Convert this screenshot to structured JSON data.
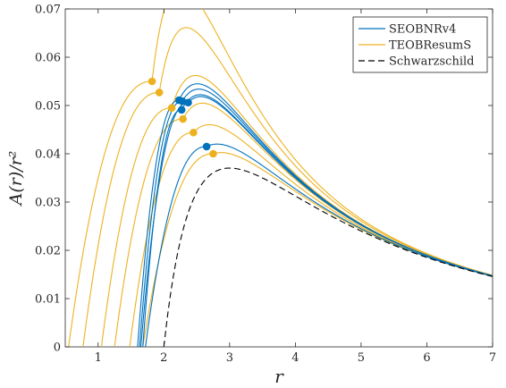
{
  "chart_data": {
    "type": "line",
    "xlabel": "r",
    "ylabel": "A(r)/r²",
    "xlim": [
      0.5,
      7
    ],
    "ylim": [
      0,
      0.07
    ],
    "xticks": [
      1,
      2,
      3,
      4,
      5,
      6,
      7
    ],
    "xtick_labels": [
      "1",
      "2",
      "3",
      "4",
      "5",
      "6",
      "7"
    ],
    "yticks": [
      0,
      0.01,
      0.02,
      0.03,
      0.04,
      0.05,
      0.06,
      0.07
    ],
    "ytick_labels": [
      "0",
      "0.01",
      "0.02",
      "0.03",
      "0.04",
      "0.05",
      "0.06",
      "0.07"
    ],
    "grid": false,
    "legend_position": "top-right",
    "colors": {
      "seobnr": "#0072BD",
      "teob": "#EDB120",
      "schw": "#000000"
    },
    "legend": [
      {
        "label": "SEOBNRv4",
        "style": "solid",
        "color_key": "seobnr"
      },
      {
        "label": "TEOBResumS",
        "style": "solid",
        "color_key": "teob"
      },
      {
        "label": "Schwarzschild",
        "style": "dashed",
        "color_key": "schw"
      }
    ],
    "series": [
      {
        "family": "TEOBResumS",
        "r0": 0.55,
        "rp": 1.82,
        "Ap": 0.055,
        "marker": [
          1.82,
          0.055
        ]
      },
      {
        "family": "TEOBResumS",
        "r0": 0.77,
        "rp": 1.93,
        "Ap": 0.0527,
        "marker": [
          1.93,
          0.0527
        ]
      },
      {
        "family": "TEOBResumS",
        "r0": 1.05,
        "rp": 2.12,
        "Ap": 0.0495,
        "marker": [
          2.12,
          0.0495
        ]
      },
      {
        "family": "TEOBResumS",
        "r0": 1.25,
        "rp": 2.29,
        "Ap": 0.0472,
        "marker": [
          2.29,
          0.0472
        ]
      },
      {
        "family": "TEOBResumS",
        "r0": 1.48,
        "rp": 2.45,
        "Ap": 0.0444,
        "marker": [
          2.45,
          0.0444
        ]
      },
      {
        "family": "TEOBResumS",
        "r0": 1.68,
        "rp": 2.75,
        "Ap": 0.04,
        "marker": [
          2.75,
          0.04
        ]
      },
      {
        "family": "SEOBNRv4",
        "r0": 1.6,
        "rp": 2.23,
        "Ap": 0.0511,
        "marker": [
          2.23,
          0.0511
        ]
      },
      {
        "family": "SEOBNRv4",
        "r0": 1.63,
        "rp": 2.28,
        "Ap": 0.0509,
        "marker": [
          2.28,
          0.0509
        ]
      },
      {
        "family": "SEOBNRv4",
        "r0": 1.65,
        "rp": 2.37,
        "Ap": 0.0506,
        "marker": [
          2.37,
          0.0506
        ]
      },
      {
        "family": "SEOBNRv4",
        "r0": 1.68,
        "rp": 2.27,
        "Ap": 0.0491,
        "marker": [
          2.27,
          0.0491
        ]
      },
      {
        "family": "SEOBNRv4",
        "r0": 1.72,
        "rp": 2.65,
        "Ap": 0.0415,
        "marker": [
          2.65,
          0.0415
        ]
      },
      {
        "family": "Schwarzschild",
        "style": "dashed",
        "formula": "(1-2/r)/r^2",
        "r0": 2.0,
        "r1": 7.0
      }
    ]
  }
}
